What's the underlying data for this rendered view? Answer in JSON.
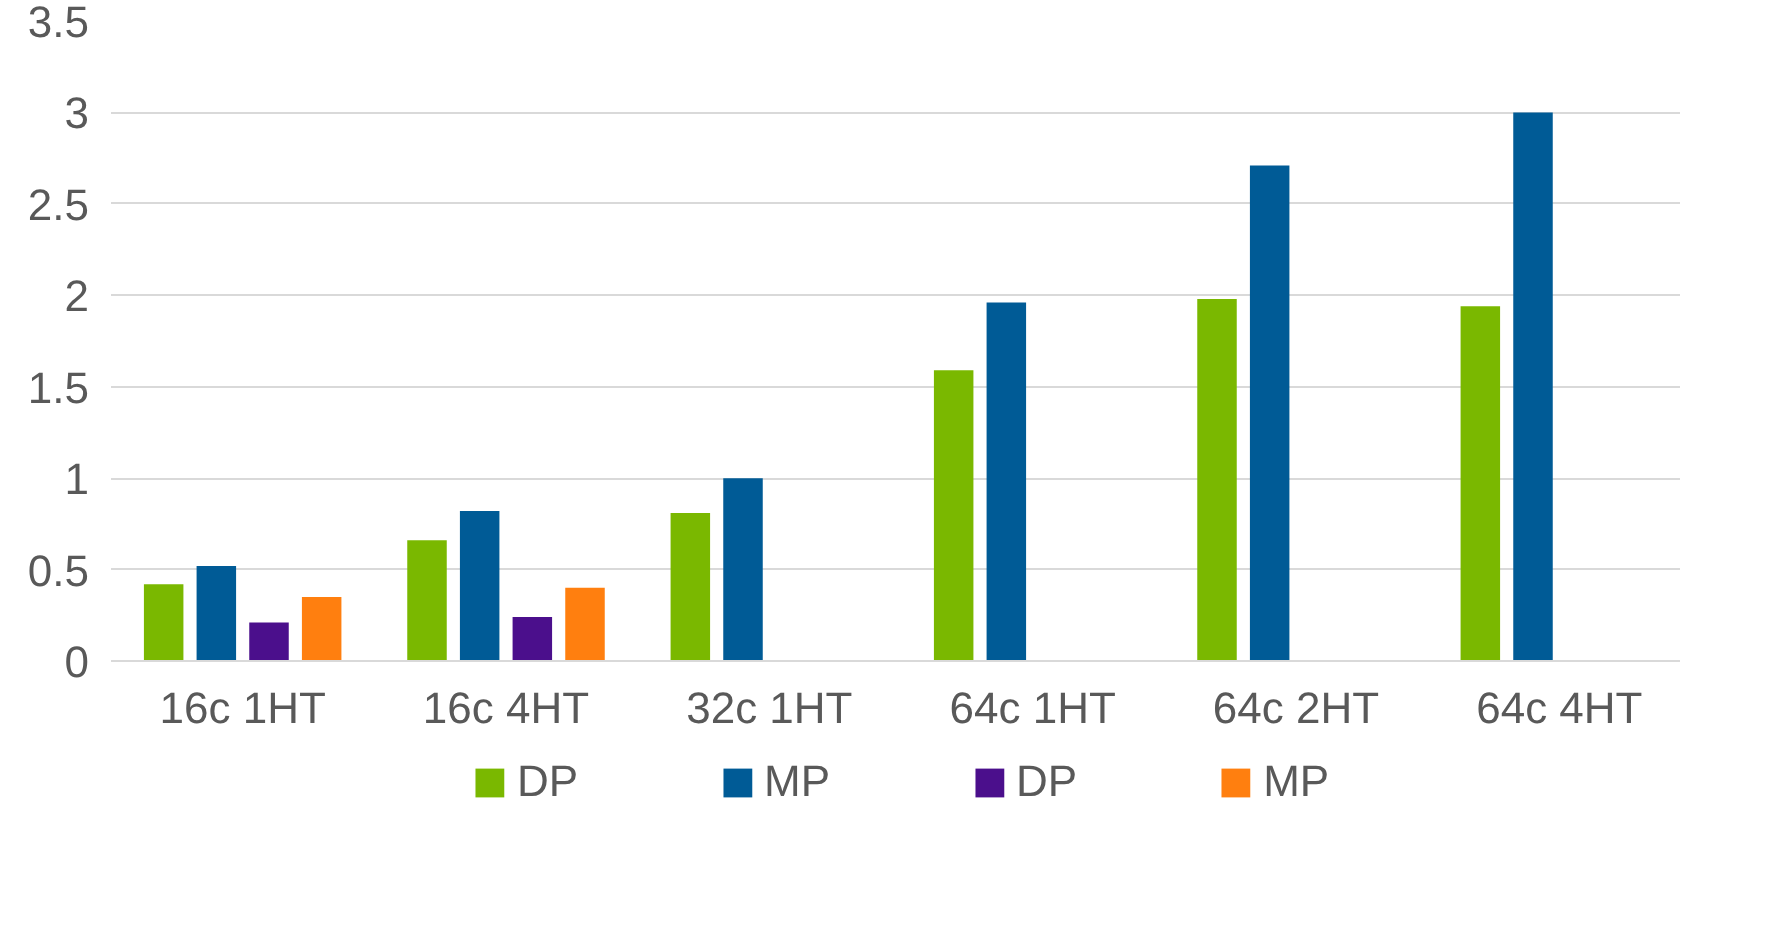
{
  "chart_data": {
    "type": "bar",
    "categories": [
      "16c 1HT",
      "16c 4HT",
      "32c 1HT",
      "64c 1HT",
      "64c 2HT",
      "64c 4HT"
    ],
    "series": [
      {
        "name": "DP",
        "color": "#7ab800",
        "values": [
          0.42,
          0.66,
          0.81,
          1.59,
          1.98,
          1.94
        ]
      },
      {
        "name": "MP",
        "color": "#005b96",
        "values": [
          0.52,
          0.82,
          1.0,
          1.96,
          2.71,
          3.0
        ]
      },
      {
        "name": "DP",
        "color": "#4b0f8c",
        "values": [
          0.21,
          0.24,
          null,
          null,
          null,
          null
        ]
      },
      {
        "name": "MP",
        "color": "#ff7f0f",
        "values": [
          0.35,
          0.4,
          null,
          null,
          null,
          null
        ]
      }
    ],
    "ylim": [
      0,
      3.5
    ],
    "yticks": [
      0,
      0.5,
      1,
      1.5,
      2,
      2.5,
      3,
      3.5
    ],
    "grid": "y",
    "legend": "bottom"
  }
}
